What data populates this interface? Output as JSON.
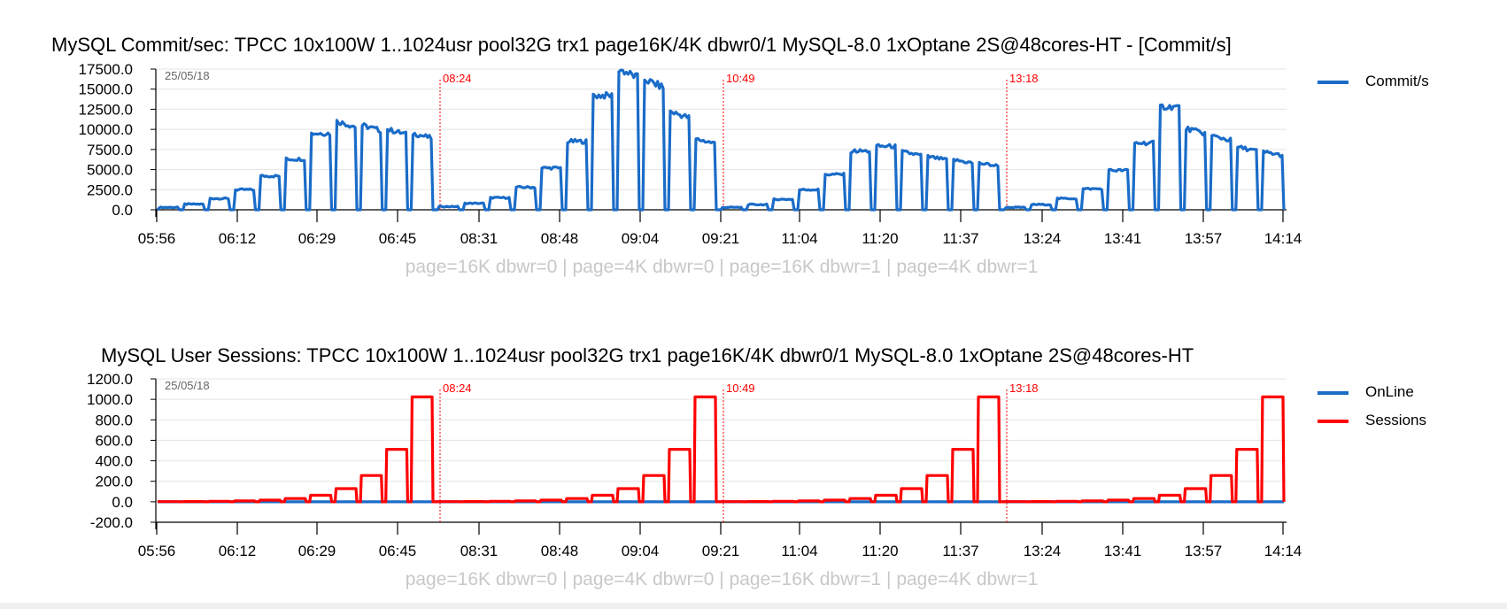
{
  "chart_data": [
    {
      "type": "line",
      "title": "MySQL Commit/sec: TPCC 10x100W 1..1024usr pool32G trx1 page16K/4K dbwr0/1 MySQL-8.0 1xOptane 2S@48cores-HT - [Commit/s]",
      "date_label": "25/05/18",
      "xlabel": "page=16K dbwr=0 | page=4K dbwr=0 | page=16K dbwr=1 | page=4K dbwr=1",
      "ylim": [
        0,
        17500
      ],
      "yticks": [
        0,
        2500,
        5000,
        7500,
        10000,
        12500,
        15000,
        17500
      ],
      "ytick_labels": [
        "0.0",
        "2500.0",
        "5000.0",
        "7500.0",
        "10000.0",
        "12500.0",
        "15000.0",
        "17500.0"
      ],
      "xticks": [
        "05:56",
        "06:12",
        "06:29",
        "06:45",
        "08:31",
        "08:48",
        "09:04",
        "09:21",
        "11:04",
        "11:20",
        "11:37",
        "13:24",
        "13:41",
        "13:57",
        "14:14"
      ],
      "markers": [
        "08:24",
        "10:49",
        "13:18"
      ],
      "grid": true,
      "legend": "right",
      "series": [
        {
          "name": "Commit/s",
          "color": "#1a6cc8",
          "runs": [
            [
              300,
              700,
              1400,
              2500,
              4200,
              6300,
              9500,
              11000,
              10500,
              10000,
              9500
            ],
            [
              400,
              800,
              1500,
              2800,
              5200,
              8500,
              14200,
              17500,
              16200,
              12200,
              8800
            ],
            [
              300,
              650,
              1300,
              2500,
              4400,
              7300,
              7900,
              7200,
              6600,
              6200,
              5800
            ],
            [
              300,
              650,
              1400,
              2600,
              4900,
              8300,
              12800,
              10100,
              9200,
              7800,
              7200
            ]
          ]
        }
      ]
    },
    {
      "type": "line",
      "title": "MySQL User Sessions: TPCC 10x100W 1..1024usr pool32G trx1 page16K/4K dbwr0/1 MySQL-8.0 1xOptane 2S@48cores-HT",
      "date_label": "25/05/18",
      "xlabel": "page=16K dbwr=0 | page=4K dbwr=0 | page=16K dbwr=1 | page=4K dbwr=1",
      "ylim": [
        -200,
        1200
      ],
      "yticks": [
        -200,
        0,
        200,
        400,
        600,
        800,
        1000,
        1200
      ],
      "ytick_labels": [
        "-200.0",
        "0.0",
        "200.0",
        "400.0",
        "600.0",
        "800.0",
        "1000.0",
        "1200.0"
      ],
      "xticks": [
        "05:56",
        "06:12",
        "06:29",
        "06:45",
        "08:31",
        "08:48",
        "09:04",
        "09:21",
        "11:04",
        "11:20",
        "11:37",
        "13:24",
        "13:41",
        "13:57",
        "14:14"
      ],
      "markers": [
        "08:24",
        "10:49",
        "13:18"
      ],
      "grid": true,
      "legend": "right",
      "series": [
        {
          "name": "OnLine",
          "color": "#1a6cc8",
          "runs": [
            [
              0,
              0,
              0,
              0,
              0,
              0,
              0,
              0,
              0,
              0,
              0
            ],
            [
              0,
              0,
              0,
              0,
              0,
              0,
              0,
              0,
              0,
              0,
              0
            ],
            [
              0,
              0,
              0,
              0,
              0,
              0,
              0,
              0,
              0,
              0,
              0
            ],
            [
              0,
              0,
              0,
              0,
              0,
              0,
              0,
              0,
              0,
              0,
              0
            ]
          ]
        },
        {
          "name": "Sessions",
          "color": "#ff0000",
          "runs": [
            [
              1,
              2,
              4,
              8,
              16,
              32,
              64,
              128,
              256,
              512,
              1024
            ],
            [
              1,
              2,
              4,
              8,
              16,
              32,
              64,
              128,
              256,
              512,
              1024
            ],
            [
              1,
              2,
              4,
              8,
              16,
              32,
              64,
              128,
              256,
              512,
              1024
            ],
            [
              1,
              2,
              4,
              8,
              16,
              32,
              64,
              128,
              256,
              512,
              1024
            ]
          ]
        }
      ]
    }
  ],
  "colors": {
    "marker": "#ff0000",
    "axis": "#000000",
    "grid": "#e4e4e4",
    "xlabel": "#c8c8c8",
    "date_label": "#666666"
  }
}
